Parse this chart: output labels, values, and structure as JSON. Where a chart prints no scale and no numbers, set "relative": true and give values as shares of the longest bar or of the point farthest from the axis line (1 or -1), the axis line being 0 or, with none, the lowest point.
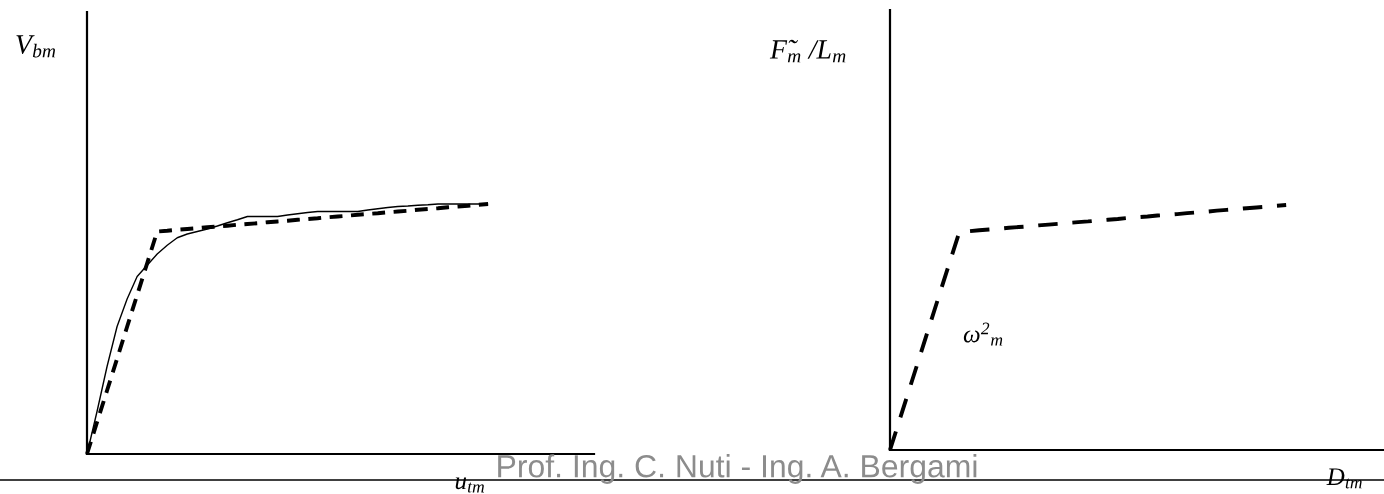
{
  "chart_data": [
    {
      "type": "line",
      "relative": true,
      "ylabel": "V$_{bm}$",
      "xlabel": "u$_{tm}$",
      "tick_labels": false,
      "categories": [
        null,
        null,
        null,
        null,
        null,
        null,
        null,
        null,
        null,
        null,
        null,
        null,
        null,
        null,
        null,
        null,
        null,
        null,
        null,
        null,
        null,
        null,
        null,
        null,
        null,
        null,
        null,
        null,
        null,
        null,
        null,
        null,
        null,
        null,
        null,
        null,
        null,
        null,
        null,
        null,
        null
      ],
      "series": [
        {
          "color": "#000000",
          "line_style": "solid",
          "values": [
            0,
            0.17,
            0.35,
            0.51,
            0.62,
            0.71,
            0.755,
            0.8,
            0.835,
            0.865,
            0.88,
            0.89,
            0.9,
            0.912,
            0.925,
            0.937,
            0.95,
            0.95,
            0.95,
            0.95,
            0.956,
            0.961,
            0.966,
            0.97,
            0.97,
            0.97,
            0.97,
            0.97,
            0.976,
            0.981,
            0.986,
            0.99,
            0.992,
            0.995,
            0.997,
            1.0,
            1.0,
            1.0,
            1.0,
            1.0,
            1.0
          ]
        },
        {
          "color": "#000000",
          "line_style": "dashed",
          "values": [
            0,
            0.127,
            0.254,
            0.381,
            0.509,
            0.636,
            0.763,
            0.89,
            0.893,
            0.897,
            0.9,
            0.903,
            0.907,
            0.91,
            0.913,
            0.917,
            0.92,
            0.923,
            0.927,
            0.93,
            0.933,
            0.937,
            0.94,
            0.943,
            0.947,
            0.95,
            0.953,
            0.957,
            0.96,
            0.963,
            0.967,
            0.97,
            0.973,
            0.977,
            0.98,
            0.983,
            0.987,
            0.99,
            0.993,
            0.997,
            1.0
          ]
        }
      ],
      "annotations": [
        "Prof. Ing. C. Nuti - Ing. A. Bergami"
      ]
    },
    {
      "type": "line",
      "relative": true,
      "ylabel": "F̃$_{m}$ /L$_{m}$",
      "xlabel": "D$_{tm}$",
      "tick_labels": false,
      "categories": [
        null,
        null,
        null,
        null,
        null,
        null,
        null,
        null,
        null,
        null,
        null,
        null,
        null,
        null,
        null,
        null,
        null,
        null,
        null,
        null,
        null,
        null,
        null,
        null,
        null,
        null,
        null,
        null,
        null,
        null,
        null,
        null,
        null,
        null,
        null,
        null,
        null,
        null,
        null,
        null,
        null
      ],
      "series": [
        {
          "color": "#000000",
          "line_style": "dashed",
          "values": [
            0,
            0.127,
            0.254,
            0.381,
            0.509,
            0.636,
            0.763,
            0.89,
            0.893,
            0.897,
            0.9,
            0.903,
            0.907,
            0.91,
            0.913,
            0.917,
            0.92,
            0.923,
            0.927,
            0.93,
            0.933,
            0.937,
            0.94,
            0.943,
            0.947,
            0.95,
            0.953,
            0.957,
            0.96,
            0.963,
            0.967,
            0.97,
            0.973,
            0.977,
            0.98,
            0.983,
            0.987,
            0.99,
            0.993,
            0.997,
            1.0
          ]
        }
      ],
      "annotations": [
        "ω$^{2}$$_{m}$"
      ]
    }
  ]
}
